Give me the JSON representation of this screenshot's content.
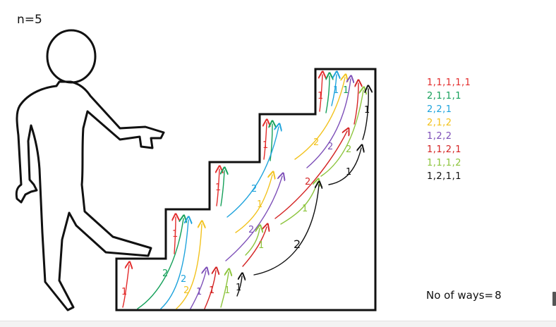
{
  "n_label": "n=5",
  "colors": {
    "red": "#e32b2b",
    "green": "#15a05a",
    "blue": "#1ea3dc",
    "yellow": "#f2c21d",
    "purple": "#7d4fb8",
    "crimson": "#d42525",
    "lightgreen": "#8cc43c",
    "black": "#111111",
    "outline": "#111111"
  },
  "ways": [
    {
      "text": "1,1,1,1,1",
      "color": "#e32b2b"
    },
    {
      "text": "2,1,1,1",
      "color": "#15a05a"
    },
    {
      "text": "2,2,1",
      "color": "#1ea3dc"
    },
    {
      "text": "2,1,2",
      "color": "#f2c21d"
    },
    {
      "text": "1,2,2",
      "color": "#7d4fb8"
    },
    {
      "text": "1,1,2,1",
      "color": "#d42525"
    },
    {
      "text": "1,1,1,2",
      "color": "#8cc43c"
    },
    {
      "text": "1,2,1,1",
      "color": "#111111"
    }
  ],
  "ways_count_label": "No of ways=",
  "ways_count": "8",
  "step_labels": {
    "one": "1",
    "two": "2"
  }
}
